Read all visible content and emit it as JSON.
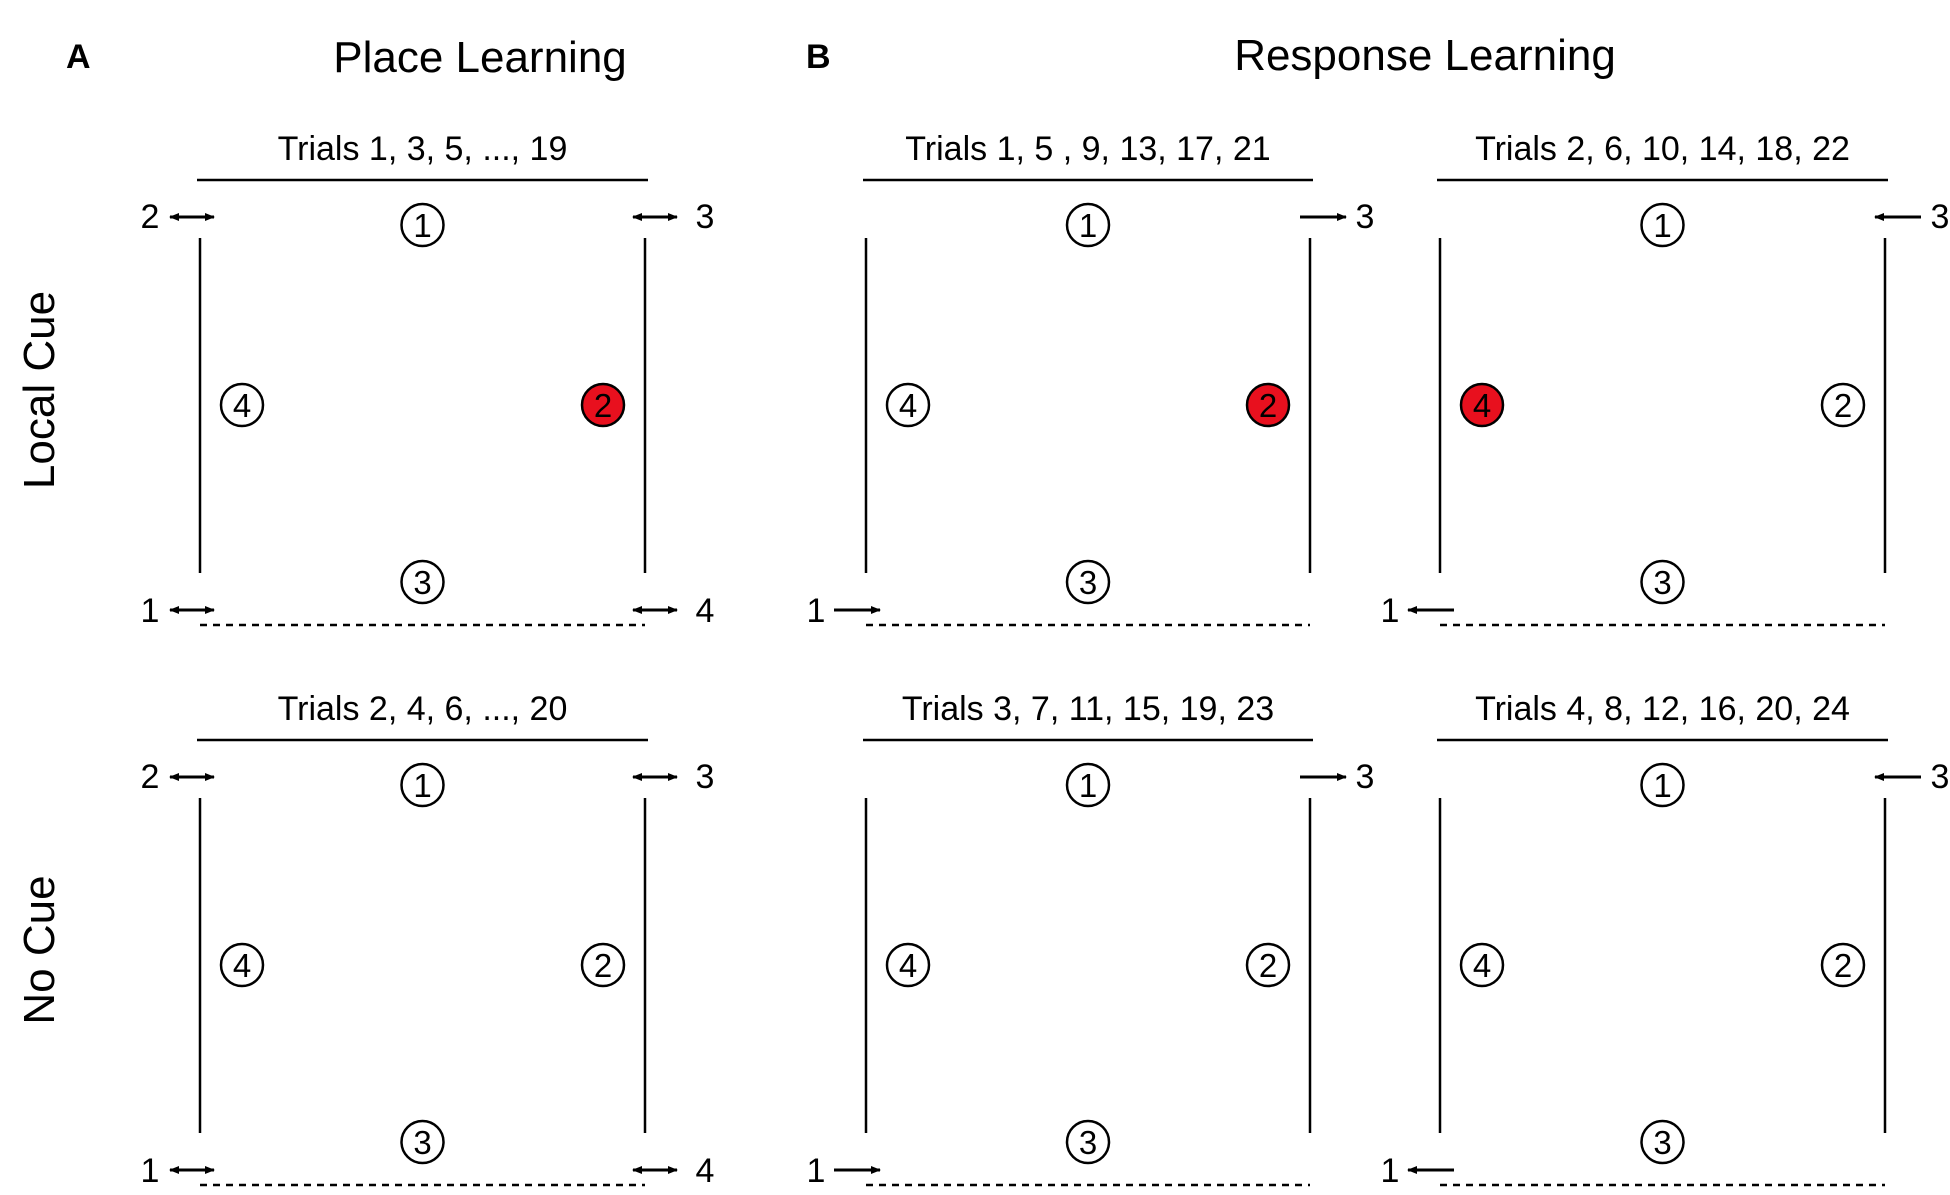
{
  "panel_a": {
    "letter": "A",
    "title": "Place Learning"
  },
  "panel_b": {
    "letter": "B",
    "title": "Response Learning"
  },
  "rows": [
    "Local Cue",
    "No Cue"
  ],
  "colors": {
    "reward": "#e8101e",
    "line": "#000000"
  },
  "mazes": [
    {
      "title": "Trials 1, 3, 5, ..., 19",
      "starts": {
        "tl": {
          "label": "2",
          "arrow": "both"
        },
        "tr": {
          "label": "3",
          "arrow": "both"
        },
        "bl": {
          "label": "1",
          "arrow": "both"
        },
        "br": {
          "label": "4",
          "arrow": "both"
        }
      },
      "arms": [
        "1",
        "2",
        "3",
        "4"
      ],
      "reward": "2"
    },
    {
      "title": "Trials 1, 5 , 9, 13, 17, 21",
      "starts": {
        "tr": {
          "label": "3",
          "arrow": "right"
        },
        "bl": {
          "label": "1",
          "arrow": "right"
        }
      },
      "arms": [
        "1",
        "2",
        "3",
        "4"
      ],
      "reward": "2"
    },
    {
      "title": "Trials 2, 6, 10, 14, 18, 22",
      "starts": {
        "tr": {
          "label": "3",
          "arrow": "left"
        },
        "bl": {
          "label": "1",
          "arrow": "left"
        }
      },
      "arms": [
        "1",
        "2",
        "3",
        "4"
      ],
      "reward": "4"
    },
    {
      "title": "Trials 2, 4, 6, ..., 20",
      "starts": {
        "tl": {
          "label": "2",
          "arrow": "both"
        },
        "tr": {
          "label": "3",
          "arrow": "both"
        },
        "bl": {
          "label": "1",
          "arrow": "both"
        },
        "br": {
          "label": "4",
          "arrow": "both"
        }
      },
      "arms": [
        "1",
        "2",
        "3",
        "4"
      ],
      "reward": null
    },
    {
      "title": "Trials 3, 7, 11, 15, 19, 23",
      "starts": {
        "tr": {
          "label": "3",
          "arrow": "right"
        },
        "bl": {
          "label": "1",
          "arrow": "right"
        }
      },
      "arms": [
        "1",
        "2",
        "3",
        "4"
      ],
      "reward": null
    },
    {
      "title": "Trials 4, 8, 12, 16, 20, 24",
      "starts": {
        "tr": {
          "label": "3",
          "arrow": "left"
        },
        "bl": {
          "label": "1",
          "arrow": "left"
        }
      },
      "arms": [
        "1",
        "2",
        "3",
        "4"
      ],
      "reward": null
    }
  ]
}
